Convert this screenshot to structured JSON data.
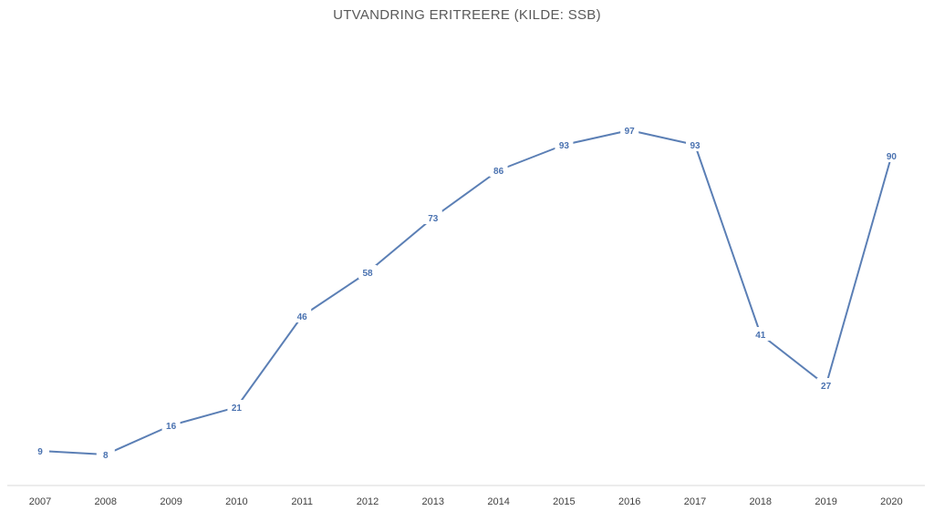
{
  "chart_data": {
    "type": "line",
    "title": "UTVANDRING ERITREERE (KILDE: SSB)",
    "xlabel": "",
    "ylabel": "",
    "categories": [
      "2007",
      "2008",
      "2009",
      "2010",
      "2011",
      "2012",
      "2013",
      "2014",
      "2015",
      "2016",
      "2017",
      "2018",
      "2019",
      "2020"
    ],
    "series": [
      {
        "values": [
          9,
          8,
          16,
          21,
          46,
          58,
          73,
          86,
          93,
          97,
          93,
          41,
          27,
          90
        ]
      }
    ],
    "ylim": [
      0,
      100
    ],
    "grid": false,
    "legend": "none",
    "line_color": "#5b7fb5",
    "label_color": "#4a72b0",
    "axis_color": "#d9d9d9"
  }
}
